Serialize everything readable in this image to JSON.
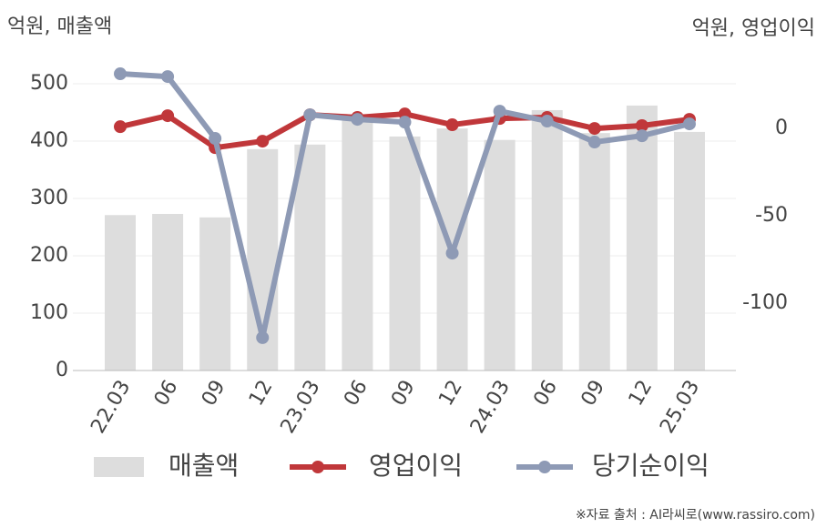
{
  "chart_data": {
    "type": "bar-line",
    "left_unit": "억원, 매출액",
    "right_unit": "억원, 영업이익",
    "categories": [
      "22.03",
      "06",
      "09",
      "12",
      "23.03",
      "06",
      "09",
      "12",
      "24.03",
      "06",
      "09",
      "12",
      "25.03"
    ],
    "series": [
      {
        "name": "매출액",
        "type": "bar",
        "color": "#dddddd",
        "values": [
          271,
          273,
          267,
          386,
          394,
          438,
          408,
          422,
          402,
          454,
          414,
          462,
          416
        ]
      },
      {
        "name": "영업이익",
        "type": "line",
        "axis": "y2",
        "color": "#c0373a",
        "values": [
          1,
          7.3,
          -11,
          -7.3,
          7.8,
          6.3,
          8.3,
          2.1,
          5.7,
          6.3,
          0,
          1.6,
          5.2
        ]
      },
      {
        "name": "당기순이익",
        "type": "line",
        "axis": "y2",
        "color": "#8e9ab5",
        "values": [
          31.3,
          29.7,
          -5.7,
          -119.8,
          7.8,
          5.2,
          3.6,
          -71.4,
          9.9,
          4.2,
          -7.8,
          -4.2,
          2.6
        ]
      }
    ],
    "ylim": [
      0,
      550
    ],
    "yticks": [
      0,
      100,
      200,
      300,
      400,
      500
    ],
    "y2lim": [
      -138.6,
      42
    ],
    "y2ticks": [
      0,
      -50,
      -100
    ],
    "grid": true,
    "source": "※자료 출처 : AI라씨로(www.rassiro.com)"
  }
}
